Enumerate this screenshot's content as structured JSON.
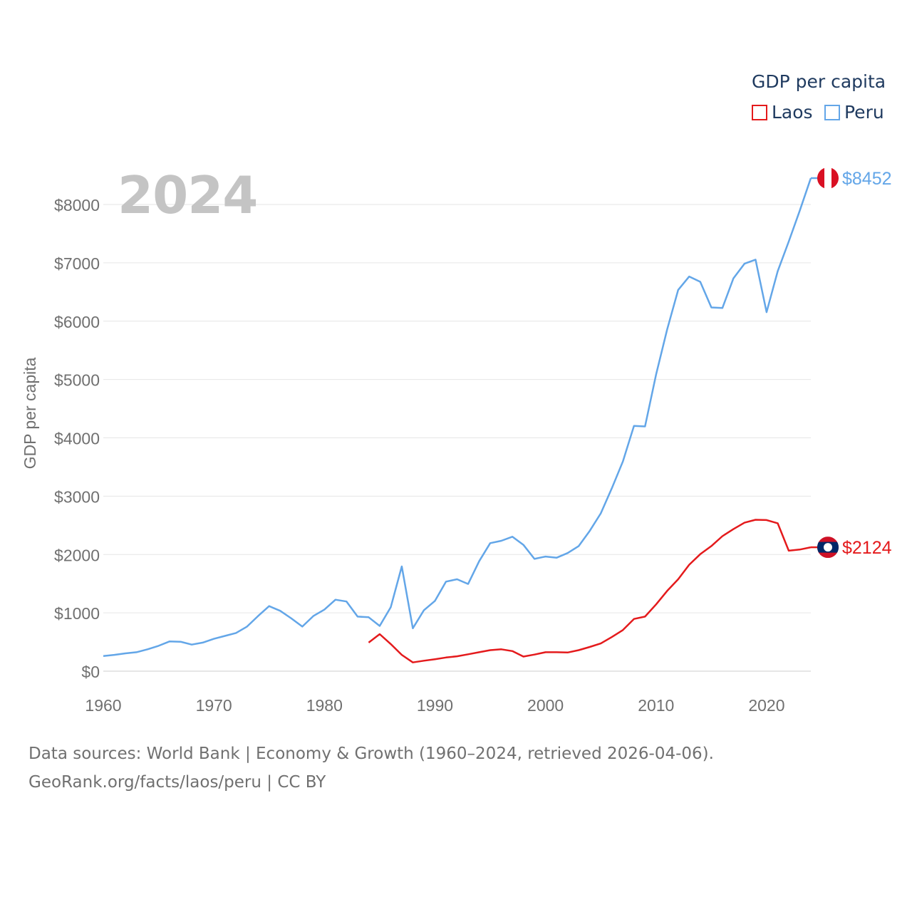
{
  "year_label": "2024",
  "legend": {
    "title": "GDP per capita",
    "items": [
      {
        "name": "Laos",
        "color": "#e41a1c"
      },
      {
        "name": "Peru",
        "color": "#63a6e8"
      }
    ]
  },
  "source": {
    "line1": "Data sources: World Bank | Economy & Growth (1960–2024, retrieved 2026-04-06).",
    "line2": "GeoRank.org/facts/laos/peru | CC BY"
  },
  "chart_data": {
    "type": "line",
    "ylabel": "GDP per capita",
    "xlabel": "",
    "xlim": [
      1960,
      2024
    ],
    "ylim": [
      0,
      8500
    ],
    "x_ticks": [
      "1960",
      "1970",
      "1980",
      "1990",
      "2000",
      "2010",
      "2020"
    ],
    "y_ticks": [
      "$0",
      "$1000",
      "$2000",
      "$3000",
      "$4000",
      "$5000",
      "$6000",
      "$7000",
      "$8000"
    ],
    "grid": true,
    "legend_position": "top-right",
    "series": [
      {
        "name": "Peru",
        "color": "#63a6e8",
        "end_label": "$8452",
        "flag": "peru",
        "points": [
          [
            1960,
            260
          ],
          [
            1961,
            280
          ],
          [
            1962,
            305
          ],
          [
            1963,
            325
          ],
          [
            1964,
            375
          ],
          [
            1965,
            435
          ],
          [
            1966,
            510
          ],
          [
            1967,
            505
          ],
          [
            1968,
            455
          ],
          [
            1969,
            490
          ],
          [
            1970,
            555
          ],
          [
            1971,
            605
          ],
          [
            1972,
            655
          ],
          [
            1973,
            765
          ],
          [
            1974,
            945
          ],
          [
            1975,
            1115
          ],
          [
            1976,
            1035
          ],
          [
            1977,
            905
          ],
          [
            1978,
            765
          ],
          [
            1979,
            945
          ],
          [
            1980,
            1055
          ],
          [
            1981,
            1225
          ],
          [
            1982,
            1195
          ],
          [
            1983,
            935
          ],
          [
            1984,
            925
          ],
          [
            1985,
            775
          ],
          [
            1986,
            1095
          ],
          [
            1987,
            1795
          ],
          [
            1988,
            735
          ],
          [
            1989,
            1045
          ],
          [
            1990,
            1205
          ],
          [
            1991,
            1535
          ],
          [
            1992,
            1575
          ],
          [
            1993,
            1495
          ],
          [
            1994,
            1885
          ],
          [
            1995,
            2195
          ],
          [
            1996,
            2235
          ],
          [
            1997,
            2305
          ],
          [
            1998,
            2165
          ],
          [
            1999,
            1925
          ],
          [
            2000,
            1965
          ],
          [
            2001,
            1945
          ],
          [
            2002,
            2025
          ],
          [
            2003,
            2145
          ],
          [
            2004,
            2405
          ],
          [
            2005,
            2705
          ],
          [
            2006,
            3135
          ],
          [
            2007,
            3595
          ],
          [
            2008,
            4205
          ],
          [
            2009,
            4195
          ],
          [
            2010,
            5085
          ],
          [
            2011,
            5855
          ],
          [
            2012,
            6535
          ],
          [
            2013,
            6765
          ],
          [
            2014,
            6675
          ],
          [
            2015,
            6235
          ],
          [
            2016,
            6225
          ],
          [
            2017,
            6735
          ],
          [
            2018,
            6985
          ],
          [
            2019,
            7055
          ],
          [
            2020,
            6155
          ],
          [
            2021,
            6855
          ],
          [
            2022,
            7365
          ],
          [
            2023,
            7895
          ],
          [
            2024,
            8452
          ]
        ]
      },
      {
        "name": "Laos",
        "color": "#e41a1c",
        "end_label": "$2124",
        "flag": "laos",
        "points": [
          [
            1984,
            490
          ],
          [
            1985,
            635
          ],
          [
            1986,
            465
          ],
          [
            1987,
            280
          ],
          [
            1988,
            150
          ],
          [
            1989,
            180
          ],
          [
            1990,
            205
          ],
          [
            1991,
            235
          ],
          [
            1992,
            255
          ],
          [
            1993,
            290
          ],
          [
            1994,
            325
          ],
          [
            1995,
            360
          ],
          [
            1996,
            375
          ],
          [
            1997,
            345
          ],
          [
            1998,
            250
          ],
          [
            1999,
            285
          ],
          [
            2000,
            325
          ],
          [
            2001,
            325
          ],
          [
            2002,
            320
          ],
          [
            2003,
            360
          ],
          [
            2004,
            415
          ],
          [
            2005,
            475
          ],
          [
            2006,
            585
          ],
          [
            2007,
            705
          ],
          [
            2008,
            895
          ],
          [
            2009,
            935
          ],
          [
            2010,
            1145
          ],
          [
            2011,
            1375
          ],
          [
            2012,
            1575
          ],
          [
            2013,
            1825
          ],
          [
            2014,
            2005
          ],
          [
            2015,
            2145
          ],
          [
            2016,
            2315
          ],
          [
            2017,
            2435
          ],
          [
            2018,
            2545
          ],
          [
            2019,
            2595
          ],
          [
            2020,
            2590
          ],
          [
            2021,
            2535
          ],
          [
            2022,
            2065
          ],
          [
            2023,
            2085
          ],
          [
            2024,
            2124
          ]
        ]
      }
    ]
  }
}
